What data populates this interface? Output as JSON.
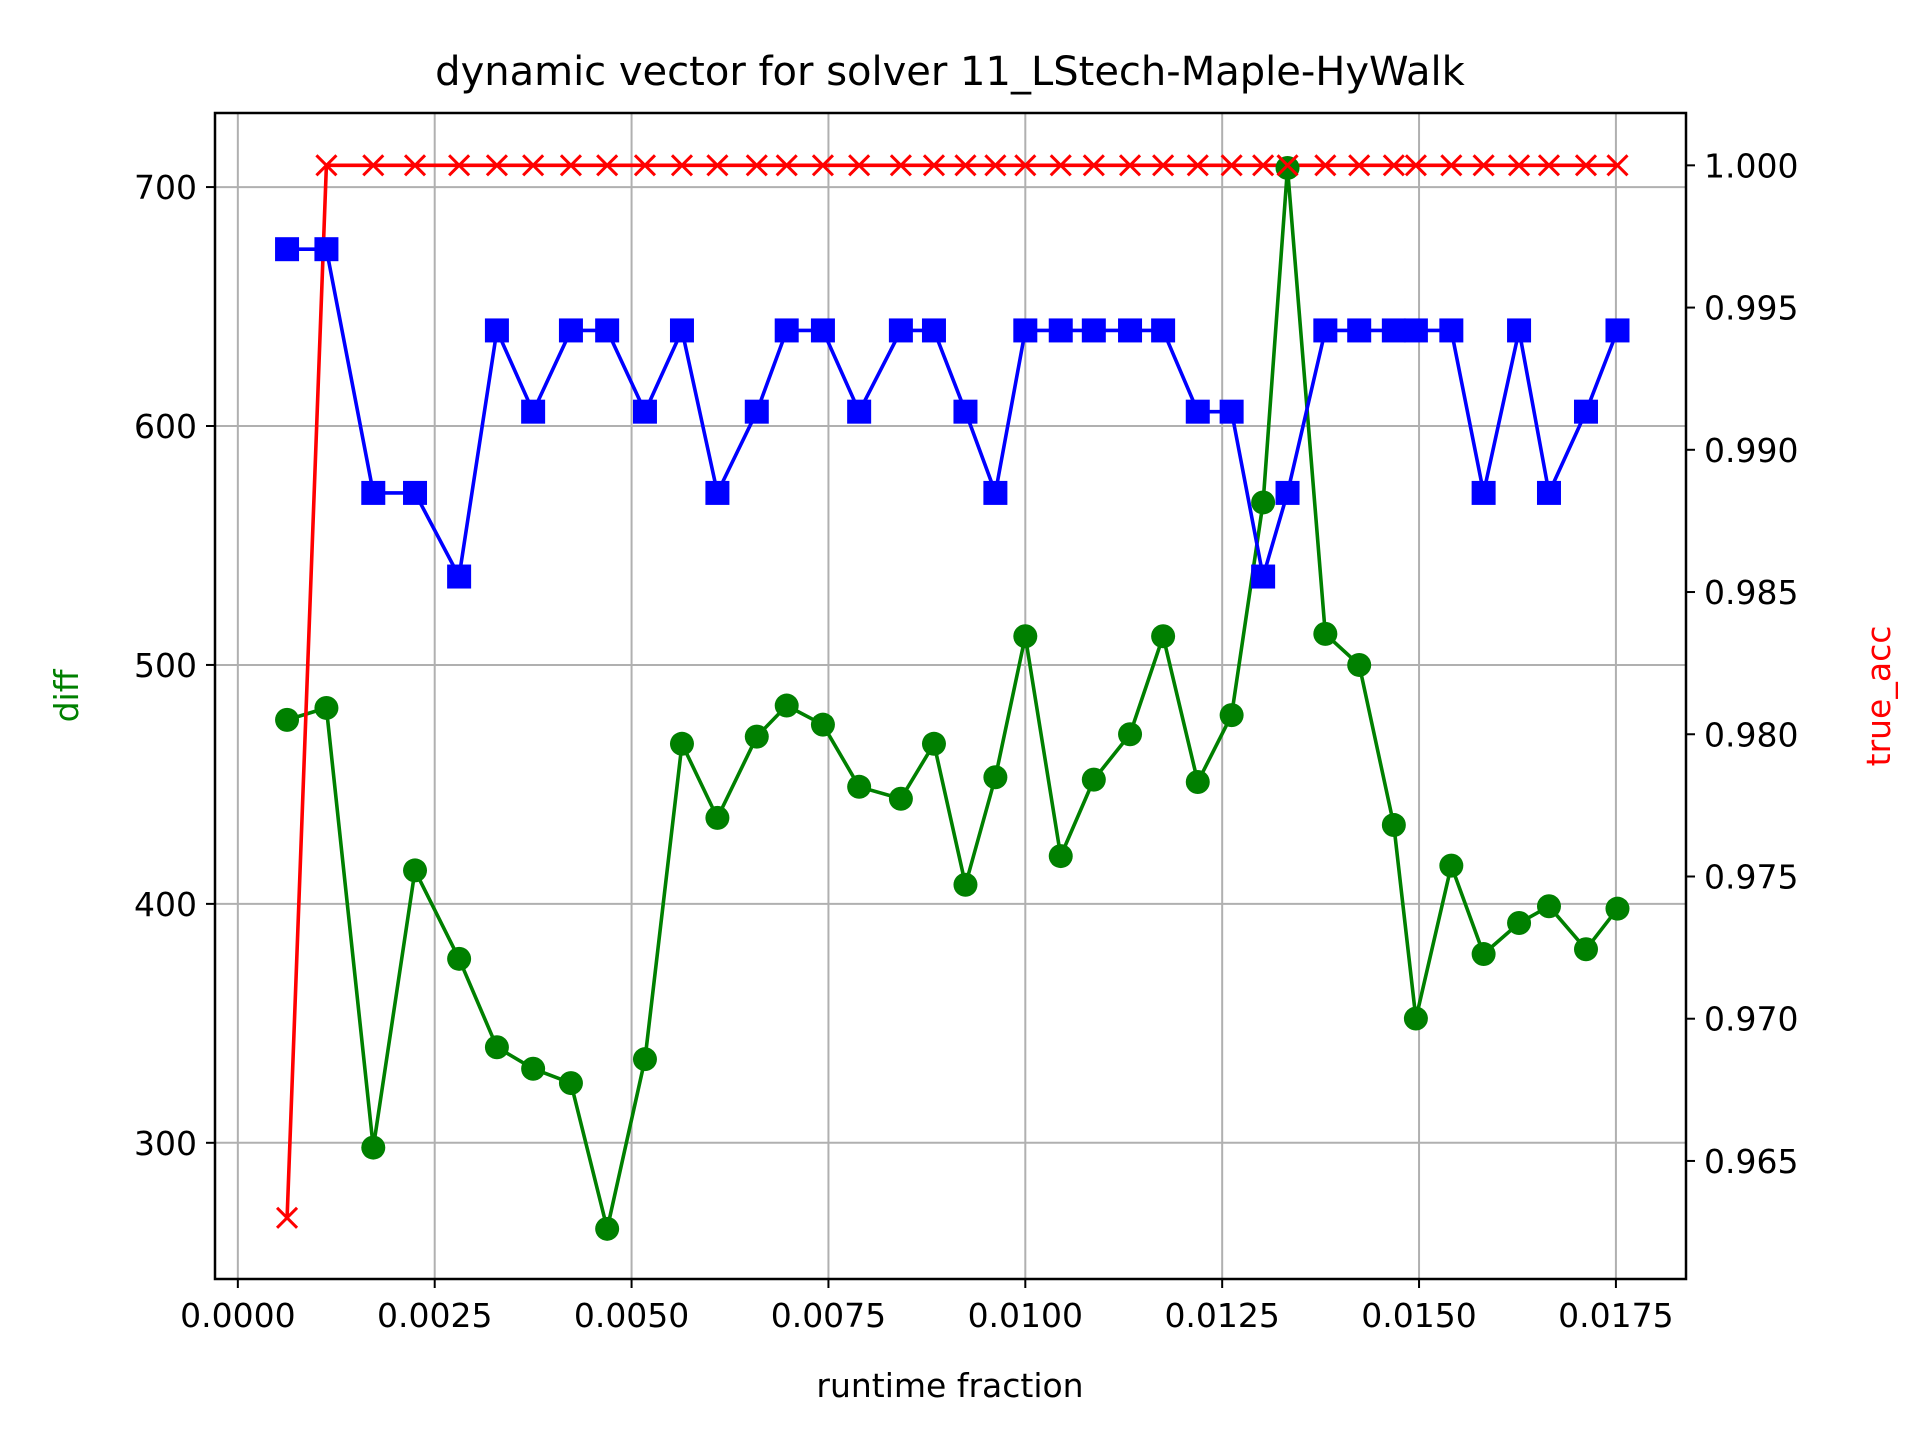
{
  "chart_data": {
    "type": "line",
    "title": "dynamic vector for solver 11_LStech-Maple-HyWalk",
    "xlabel": "runtime fraction",
    "ylabel": "diff",
    "ylabel_right": "true_acc",
    "xlim": [
      -0.00029,
      0.01839
    ],
    "ylim": [
      243,
      731
    ],
    "ylim_right": [
      0.96085,
      1.00184
    ],
    "xticks": [
      0.0,
      0.0025,
      0.005,
      0.0075,
      0.01,
      0.0125,
      0.015,
      0.0175
    ],
    "xtick_labels": [
      "0.0000",
      "0.0025",
      "0.0050",
      "0.0075",
      "0.0100",
      "0.0125",
      "0.0150",
      "0.0175"
    ],
    "yticks": [
      300,
      400,
      500,
      600,
      700
    ],
    "ytick_labels": [
      "300",
      "400",
      "500",
      "600",
      "700"
    ],
    "yticks_right": [
      0.965,
      0.97,
      0.975,
      0.98,
      0.985,
      0.99,
      0.995,
      1.0
    ],
    "ytick_labels_right": [
      "0.965",
      "0.970",
      "0.975",
      "0.980",
      "0.985",
      "0.990",
      "0.995",
      "1.000"
    ],
    "grid": true,
    "colors": {
      "green": "#008000",
      "blue": "#0000ff",
      "red": "#ff0000",
      "grid": "#b0b0b0"
    },
    "x": [
      0.000625,
      0.001125,
      0.00172,
      0.00225,
      0.00281,
      0.00329,
      0.00375,
      0.00423,
      0.00469,
      0.00517,
      0.00564,
      0.00609,
      0.00659,
      0.00697,
      0.00743,
      0.00789,
      0.00842,
      0.00884,
      0.00924,
      0.00962,
      0.01,
      0.01045,
      0.01087,
      0.01133,
      0.01175,
      0.01219,
      0.01262,
      0.01302,
      0.01333,
      0.01381,
      0.01424,
      0.01468,
      0.01496,
      0.01541,
      0.01582,
      0.01627,
      0.01665,
      0.01712,
      0.01752
    ],
    "series": [
      {
        "axis": "left",
        "color": "#008000",
        "marker": "circle",
        "values": [
          477,
          482,
          298,
          414,
          377,
          340,
          331,
          325,
          264,
          335,
          467,
          436,
          470,
          483,
          475,
          449,
          444,
          467,
          408,
          453,
          512,
          420,
          452,
          471,
          512,
          451,
          479,
          568,
          708,
          513,
          500,
          433,
          352,
          416,
          379,
          392,
          399,
          381,
          398
        ]
      },
      {
        "axis": "left",
        "color": "#0000ff",
        "marker": "square",
        "values": [
          674,
          674,
          572,
          572,
          537,
          640,
          606,
          640,
          640,
          606,
          640,
          572,
          606,
          640,
          640,
          606,
          640,
          640,
          606,
          572,
          640,
          640,
          640,
          640,
          640,
          606,
          606,
          537,
          572,
          640,
          640,
          640,
          640,
          640,
          572,
          640,
          572,
          606,
          640
        ]
      },
      {
        "axis": "right",
        "color": "#ff0000",
        "marker": "x",
        "values": [
          0.963,
          1.0,
          1.0,
          1.0,
          1.0,
          1.0,
          1.0,
          1.0,
          1.0,
          1.0,
          1.0,
          1.0,
          1.0,
          1.0,
          1.0,
          1.0,
          1.0,
          1.0,
          1.0,
          1.0,
          1.0,
          1.0,
          1.0,
          1.0,
          1.0,
          1.0,
          1.0,
          1.0,
          1.0,
          1.0,
          1.0,
          1.0,
          1.0,
          1.0,
          1.0,
          1.0,
          1.0,
          1.0,
          1.0
        ]
      }
    ]
  }
}
